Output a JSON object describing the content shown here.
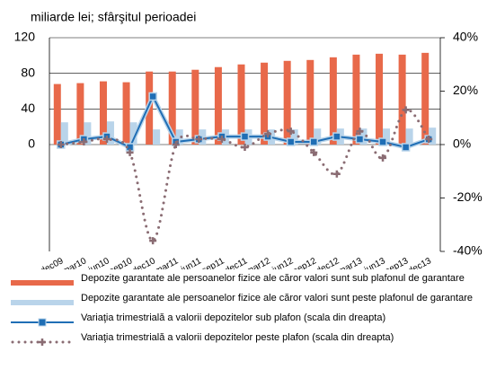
{
  "chart_data": {
    "type": "bar-line",
    "title": "miliarde lei; sfârşitul perioadei",
    "categories": [
      "dec09",
      "mar10",
      "iun10",
      "sep10",
      "dec10",
      "mar11",
      "iun11",
      "sep11",
      "dec11",
      "mar12",
      "iun12",
      "sep12",
      "dec12",
      "mar13",
      "iun13",
      "sep13",
      "dec13"
    ],
    "series": [
      {
        "name": "Depozite garantate ale persoanelor fizice ale căror valori sunt sub plafonul de garantare",
        "type": "bar",
        "color": "#e8694a",
        "values": [
          68,
          69,
          71,
          70,
          82,
          82,
          84,
          87,
          90,
          92,
          94,
          95,
          98,
          101,
          102,
          101,
          103
        ]
      },
      {
        "name": "Depozite garantate ale persoanelor fizice ale căror valori sunt peste plafonul de garantare",
        "type": "bar",
        "color": "#b9d4ea",
        "values": [
          25,
          25,
          26,
          25,
          17,
          17,
          17,
          17,
          17,
          17,
          17,
          18,
          18,
          18,
          18,
          18,
          19
        ]
      },
      {
        "name": "Variaţia trimestrială a valorii depozitelor sub plafon (scala din dreapta)",
        "type": "line",
        "axis": "y2",
        "color": "#1f6eb5",
        "values": [
          0,
          2,
          3,
          -1,
          18,
          1,
          2,
          3,
          3,
          3,
          1,
          1,
          3,
          2,
          1,
          -1,
          2
        ]
      },
      {
        "name": "Variaţia trimestrială a valorii depozitelor peste plafon (scala din dreapta)",
        "type": "dotted",
        "axis": "y2",
        "color": "#8a6c73",
        "values": [
          0,
          1,
          2,
          -3,
          -36,
          0,
          2,
          2,
          -1,
          4,
          5,
          -3,
          -11,
          5,
          -5,
          13,
          2
        ]
      }
    ],
    "ylim": [
      -120,
      120
    ],
    "yticks": [
      0,
      40,
      80,
      120
    ],
    "y2lim": [
      -40,
      40
    ],
    "y2ticks": [
      {
        "value": -40,
        "label": "-40%"
      },
      {
        "value": -20,
        "label": "-20%"
      },
      {
        "value": 0,
        "label": "0%"
      },
      {
        "value": 20,
        "label": "20%"
      },
      {
        "value": 40,
        "label": "40%"
      }
    ],
    "grid": true
  }
}
